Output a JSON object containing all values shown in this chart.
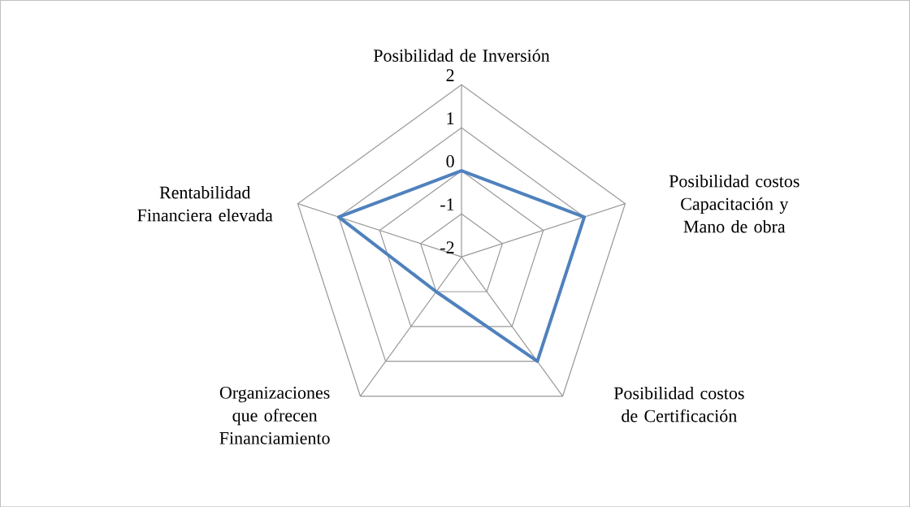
{
  "chart_data": {
    "type": "radar",
    "categories": [
      "Posibilidad de Inversión",
      "Posibilidad costos Capacitación y Mano de obra",
      "Posibilidad costos de Certificación",
      "Organizaciones que ofrecen Financiamiento",
      "Rentabilidad Financiera elevada"
    ],
    "series": [
      {
        "color": "#4f81bd",
        "values": [
          0,
          1,
          1,
          -1,
          1
        ]
      }
    ],
    "ylim": [
      -2,
      2
    ],
    "yticks": [
      -2,
      -1,
      0,
      1,
      2
    ],
    "grid": true,
    "marker": "none",
    "line_style": "solid"
  }
}
